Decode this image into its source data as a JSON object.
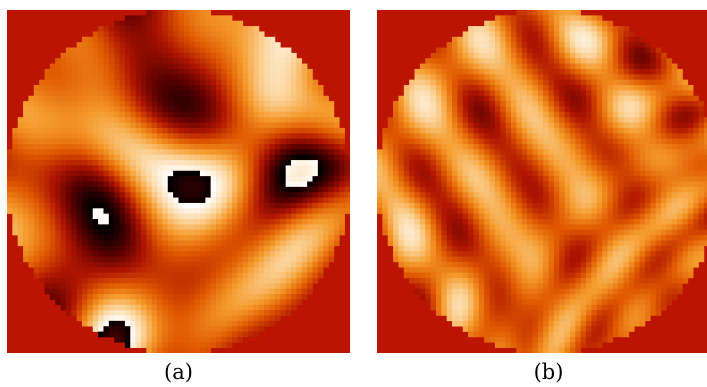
{
  "panels": [
    {
      "id": "a",
      "label": "(a)",
      "grid": 64,
      "style": "banded"
    },
    {
      "id": "b",
      "label": "(b)",
      "grid": 64,
      "style": "cellular"
    }
  ],
  "colors": {
    "background": "#bb1400",
    "colormap": [
      "#000000",
      "#5a0000",
      "#b01500",
      "#e05a00",
      "#f59b2c",
      "#fbd49a",
      "#ffffff"
    ]
  }
}
